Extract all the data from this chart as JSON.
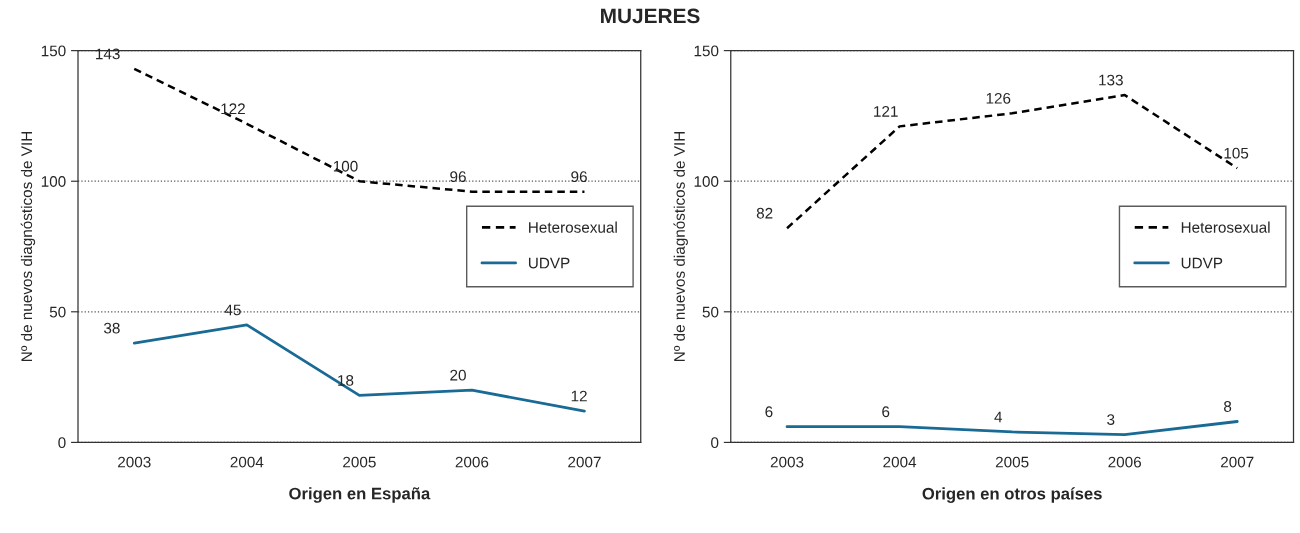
{
  "chart_data": [
    {
      "type": "line",
      "title": "MUJERES",
      "xlabel": "Origen en España",
      "ylabel": "Nº de nuevos diagnósticos de VIH",
      "categories": [
        "2003",
        "2004",
        "2005",
        "2006",
        "2007"
      ],
      "ylim": [
        0,
        150
      ],
      "yticks": [
        0,
        50,
        100,
        150
      ],
      "grid": "y",
      "legend": "right",
      "data_labels": true,
      "marker": "none",
      "series": [
        {
          "name": "Heterosexual",
          "color": "#000000",
          "line_style": "dashed",
          "values": [
            143,
            122,
            100,
            96,
            96
          ]
        },
        {
          "name": "UDVP",
          "color": "#1a6a96",
          "line_style": "solid",
          "values": [
            38,
            45,
            18,
            20,
            12
          ]
        }
      ]
    },
    {
      "type": "line",
      "xlabel": "Origen en otros países",
      "ylabel": "Nº de nuevos diagnósticos de VIH",
      "categories": [
        "2003",
        "2004",
        "2005",
        "2006",
        "2007"
      ],
      "ylim": [
        0,
        150
      ],
      "yticks": [
        0,
        50,
        100,
        150
      ],
      "grid": "y",
      "legend": "right",
      "data_labels": true,
      "marker": "none",
      "series": [
        {
          "name": "Heterosexual",
          "color": "#000000",
          "line_style": "dashed",
          "values": [
            82,
            121,
            126,
            133,
            105
          ]
        },
        {
          "name": "UDVP",
          "color": "#1a6a96",
          "line_style": "solid",
          "values": [
            6,
            6,
            4,
            3,
            8
          ]
        }
      ]
    }
  ]
}
